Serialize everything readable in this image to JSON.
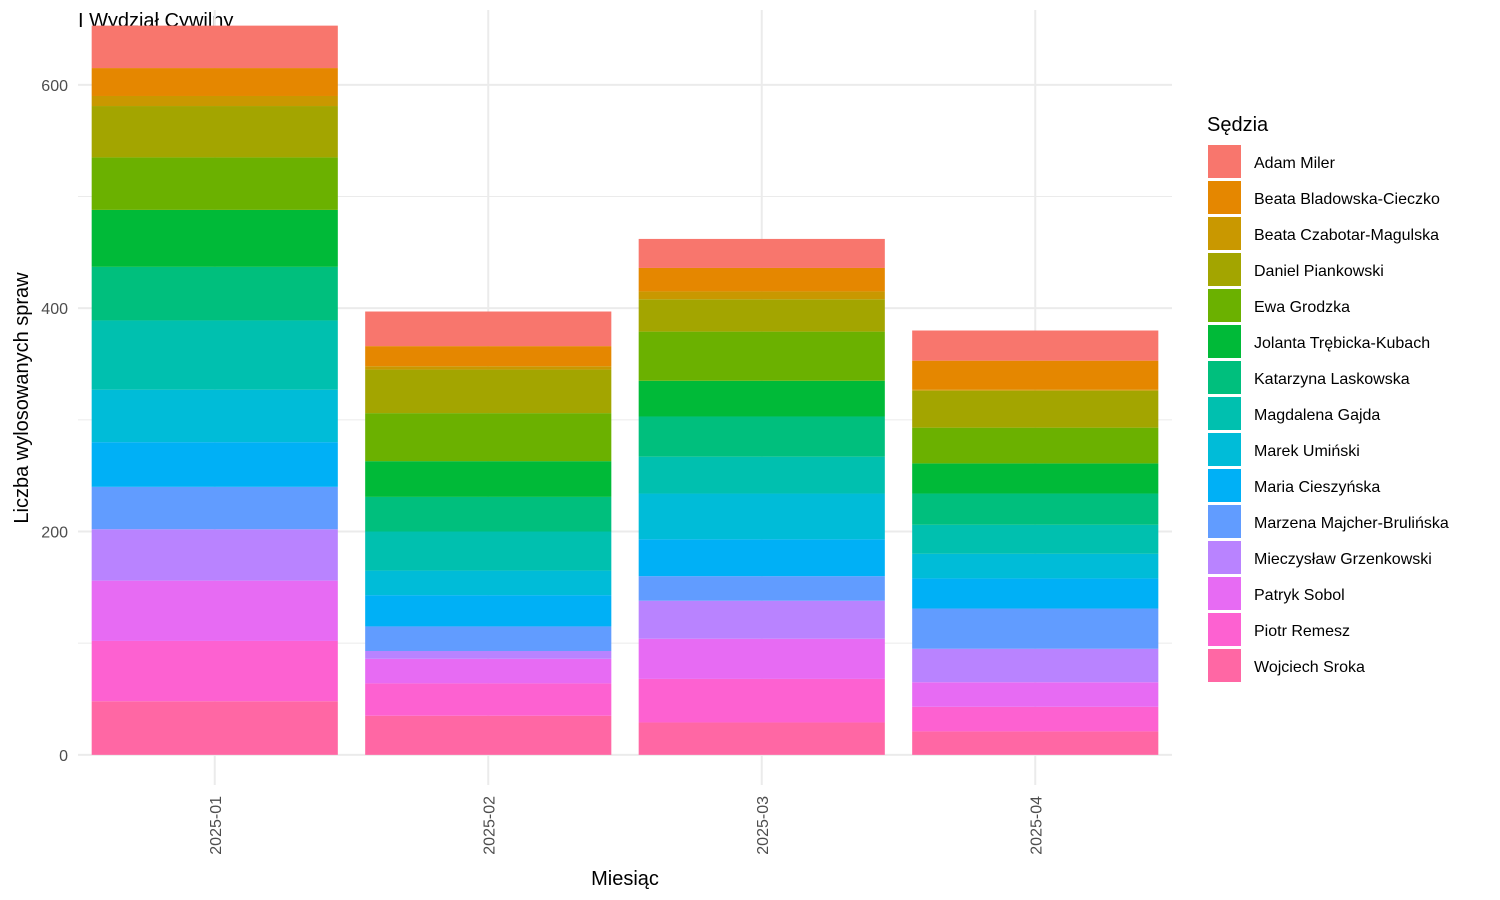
{
  "chart_data": {
    "type": "bar",
    "stacked": true,
    "title": "I Wydział Cywilny",
    "xlabel": "Miesiąc",
    "ylabel": "Liczba wylosowanych spraw",
    "ylim": [
      -27,
      667
    ],
    "yticks": [
      0,
      200,
      400,
      600
    ],
    "grid": true,
    "legend_position": "right",
    "legend_title": "Sędzia",
    "categories": [
      "2025-01",
      "2025-02",
      "2025-03",
      "2025-04"
    ],
    "series": [
      {
        "name": "Adam Miler",
        "color": "#F8766D",
        "values": [
          38,
          31,
          26,
          27
        ]
      },
      {
        "name": "Beata Bladowska-Cieczko",
        "color": "#E58700",
        "values": [
          25,
          18,
          21,
          26
        ]
      },
      {
        "name": "Beata Czabotar-Magulska",
        "color": "#C99800",
        "values": [
          9,
          3,
          7,
          1
        ]
      },
      {
        "name": "Daniel Piankowski",
        "color": "#A3A500",
        "values": [
          46,
          39,
          29,
          33
        ]
      },
      {
        "name": "Ewa Grodzka",
        "color": "#6BB100",
        "values": [
          47,
          43,
          44,
          32
        ]
      },
      {
        "name": "Jolanta Trębicka-Kubach",
        "color": "#00BA38",
        "values": [
          51,
          32,
          32,
          27
        ]
      },
      {
        "name": "Katarzyna Laskowska",
        "color": "#00BF7D",
        "values": [
          48,
          31,
          36,
          28
        ]
      },
      {
        "name": "Magdalena Gajda",
        "color": "#00C0AF",
        "values": [
          62,
          35,
          33,
          26
        ]
      },
      {
        "name": "Marek Umiński",
        "color": "#00BCD8",
        "values": [
          47,
          22,
          41,
          22
        ]
      },
      {
        "name": "Maria Cieszyńska",
        "color": "#00B0F6",
        "values": [
          40,
          28,
          33,
          27
        ]
      },
      {
        "name": "Marzena Majcher-Brulińska",
        "color": "#619CFF",
        "values": [
          38,
          22,
          22,
          36
        ]
      },
      {
        "name": "Mieczysław Grzenkowski",
        "color": "#B983FF",
        "values": [
          46,
          7,
          34,
          30
        ]
      },
      {
        "name": "Patryk Sobol",
        "color": "#E76BF3",
        "values": [
          54,
          22,
          36,
          22
        ]
      },
      {
        "name": "Piotr Remesz",
        "color": "#FD61D1",
        "values": [
          54,
          29,
          39,
          22
        ]
      },
      {
        "name": "Wojciech Sroka",
        "color": "#FF67A4",
        "values": [
          48,
          35,
          29,
          21
        ]
      }
    ]
  }
}
